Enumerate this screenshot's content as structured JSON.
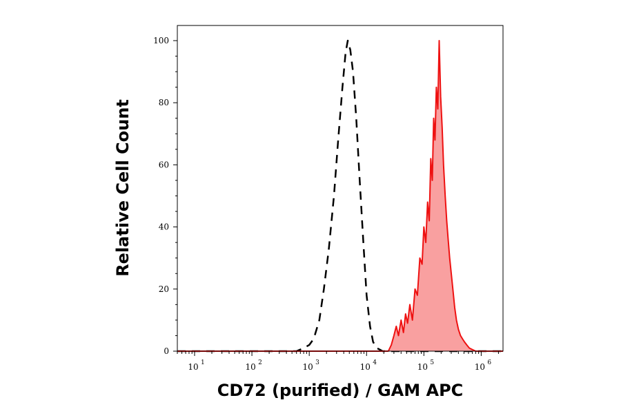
{
  "chart_data": {
    "type": "area",
    "xlabel": "CD72 (purified) / GAM APC",
    "ylabel": "Relative Cell Count",
    "xscale": "log",
    "xlim": [
      5,
      2400000
    ],
    "ylim": [
      0,
      100
    ],
    "y_ticks": [
      "0",
      "20",
      "40",
      "60",
      "80",
      "100"
    ],
    "x_ticks": [
      {
        "base": "10",
        "exp": "1",
        "value": 10
      },
      {
        "base": "10",
        "exp": "2",
        "value": 100
      },
      {
        "base": "10",
        "exp": "3",
        "value": 1000
      },
      {
        "base": "10",
        "exp": "4",
        "value": 10000
      },
      {
        "base": "10",
        "exp": "5",
        "value": 100000
      },
      {
        "base": "10",
        "exp": "6",
        "value": 1000000
      }
    ],
    "grid": false,
    "series": [
      {
        "style": "dashed-outline",
        "color": "#000000",
        "x": [
          5,
          600,
          800,
          1000,
          1200,
          1500,
          1800,
          2200,
          2700,
          3200,
          3800,
          4300,
          4700,
          5200,
          5800,
          6600,
          7600,
          8800,
          10000,
          11500,
          13000,
          15000,
          17000,
          19000,
          2400000
        ],
        "y": [
          0,
          0,
          1,
          2,
          4,
          10,
          20,
          33,
          50,
          68,
          85,
          96,
          100,
          97,
          90,
          75,
          55,
          35,
          18,
          8,
          3,
          1,
          0.5,
          0,
          0
        ]
      },
      {
        "style": "filled",
        "color": "#ee1111",
        "fill": "#f9a0a0",
        "x": [
          5,
          24000,
          27000,
          30000,
          33000,
          36000,
          40000,
          44000,
          48000,
          52000,
          57000,
          63000,
          70000,
          77000,
          85000,
          93000,
          100000,
          108000,
          116000,
          124000,
          132000,
          140000,
          148000,
          156000,
          165000,
          175000,
          185000,
          196000,
          208000,
          220000,
          235000,
          250000,
          265000,
          282000,
          300000,
          320000,
          345000,
          370000,
          400000,
          435000,
          470000,
          510000,
          560000,
          620000,
          700000,
          800000,
          2400000
        ],
        "y": [
          0,
          0,
          2,
          5,
          8,
          5,
          10,
          6,
          12,
          9,
          15,
          10,
          20,
          18,
          30,
          28,
          40,
          35,
          48,
          42,
          62,
          55,
          75,
          68,
          85,
          78,
          100,
          82,
          72,
          60,
          50,
          42,
          36,
          30,
          25,
          20,
          14,
          10,
          7,
          5,
          4,
          3,
          2,
          1,
          0.5,
          0,
          0
        ]
      }
    ]
  }
}
